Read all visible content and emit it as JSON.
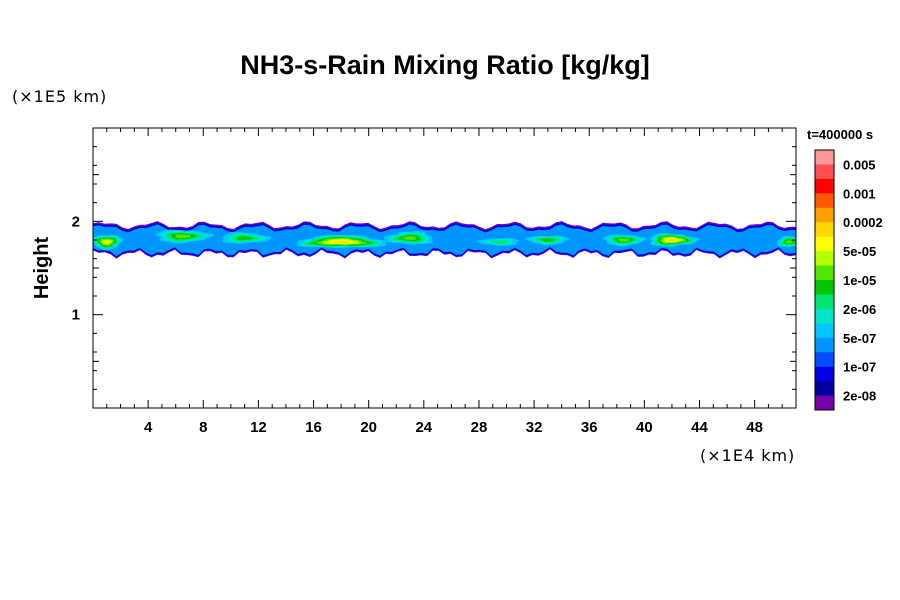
{
  "chart_data": {
    "type": "heatmap",
    "title": "NH3-s-Rain Mixing Ratio [kg/kg]",
    "ylabel": "Height",
    "x_unit": "(×1E4 km)",
    "y_unit": "(×1E5 km)",
    "time_label": "t=400000 s",
    "xlim": [
      0,
      51
    ],
    "ylim": [
      0,
      3
    ],
    "x_ticks": [
      "4",
      "8",
      "12",
      "16",
      "20",
      "24",
      "28",
      "32",
      "36",
      "40",
      "44",
      "48"
    ],
    "y_ticks": [
      "1",
      "2"
    ],
    "colorbar": {
      "labels": [
        "0.005",
        "0.001",
        "0.0002",
        "5e-05",
        "1e-05",
        "2e-06",
        "5e-07",
        "1e-07",
        "2e-08"
      ],
      "colors": [
        "#ff9999",
        "#ff5050",
        "#ff0000",
        "#ff5a00",
        "#ffa000",
        "#ffd700",
        "#ffff00",
        "#b4ff00",
        "#50e600",
        "#00c800",
        "#00e66e",
        "#00e6c8",
        "#00c8ff",
        "#0096ff",
        "#0050ff",
        "#0000e6",
        "#00009c",
        "#7800aa"
      ]
    },
    "cloud_layer": {
      "base_height": 1.65,
      "top_height": 1.98,
      "cells": [
        {
          "x_center": 1.0,
          "height": 1.78,
          "x_width": 2.2,
          "thickness": 0.16,
          "level": 6
        },
        {
          "x_center": 6.5,
          "height": 1.84,
          "x_width": 4.0,
          "thickness": 0.14,
          "level": 4
        },
        {
          "x_center": 11.0,
          "height": 1.82,
          "x_width": 3.5,
          "thickness": 0.12,
          "level": 3
        },
        {
          "x_center": 18.0,
          "height": 1.78,
          "x_width": 6.5,
          "thickness": 0.14,
          "level": 7
        },
        {
          "x_center": 23.0,
          "height": 1.82,
          "x_width": 3.5,
          "thickness": 0.14,
          "level": 4
        },
        {
          "x_center": 29.5,
          "height": 1.78,
          "x_width": 3.0,
          "thickness": 0.08,
          "level": 2
        },
        {
          "x_center": 33.0,
          "height": 1.8,
          "x_width": 3.0,
          "thickness": 0.1,
          "level": 3
        },
        {
          "x_center": 38.5,
          "height": 1.8,
          "x_width": 3.0,
          "thickness": 0.12,
          "level": 4
        },
        {
          "x_center": 42.0,
          "height": 1.8,
          "x_width": 3.5,
          "thickness": 0.14,
          "level": 7
        },
        {
          "x_center": 50.5,
          "height": 1.78,
          "x_width": 1.8,
          "thickness": 0.12,
          "level": 4
        }
      ]
    }
  }
}
